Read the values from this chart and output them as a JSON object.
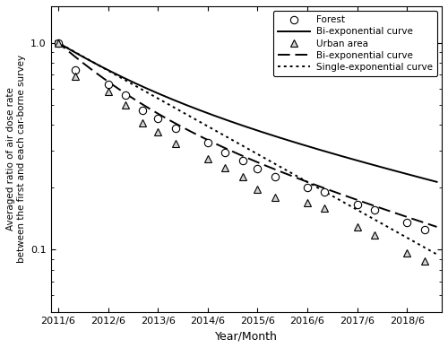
{
  "title": "",
  "xlabel": "Year/Month",
  "ylabel": "Averaged ratio of air dose rate\nbetween the first and each car-borne survey",
  "xlim_start": 2011.35,
  "xlim_end": 2019.2,
  "ylim": [
    0.05,
    1.5
  ],
  "yticks_major": [
    0.1,
    1.0
  ],
  "ytick_labels": [
    "0.1",
    "1.0"
  ],
  "xtick_labels": [
    "2011/6",
    "2012/6",
    "2013/6",
    "2014/6",
    "2015/6",
    "2016/6",
    "2017/6",
    "2018/6"
  ],
  "xtick_positions": [
    2011.5,
    2012.5,
    2013.5,
    2014.5,
    2015.5,
    2016.5,
    2017.5,
    2018.5
  ],
  "forest_x": [
    2011.5,
    2011.85,
    2012.5,
    2012.85,
    2013.2,
    2013.5,
    2013.85,
    2014.5,
    2014.85,
    2015.2,
    2015.5,
    2015.85,
    2016.5,
    2016.85,
    2017.5,
    2017.85,
    2018.5,
    2018.85
  ],
  "forest_y": [
    1.0,
    0.74,
    0.63,
    0.56,
    0.47,
    0.43,
    0.385,
    0.33,
    0.295,
    0.27,
    0.245,
    0.225,
    0.2,
    0.19,
    0.165,
    0.155,
    0.135,
    0.125
  ],
  "urban_x": [
    2011.5,
    2011.85,
    2012.5,
    2012.85,
    2013.2,
    2013.5,
    2013.85,
    2014.5,
    2014.85,
    2015.2,
    2015.5,
    2015.85,
    2016.5,
    2016.85,
    2017.5,
    2017.85,
    2018.5,
    2018.85
  ],
  "urban_y": [
    1.0,
    0.69,
    0.58,
    0.5,
    0.41,
    0.37,
    0.325,
    0.275,
    0.248,
    0.225,
    0.195,
    0.178,
    0.168,
    0.158,
    0.128,
    0.118,
    0.096,
    0.088
  ],
  "forest_biexp": {
    "a1": 0.42,
    "lam1": 0.6,
    "a2": 0.58,
    "lam2": 0.135
  },
  "urban_biexp": {
    "a1": 0.52,
    "lam1": 0.75,
    "a2": 0.48,
    "lam2": 0.175
  },
  "urban_single": {
    "a": 1.0,
    "lam": 0.31
  },
  "background_color": "#ffffff",
  "marker_size": 6,
  "line_width": 1.2
}
